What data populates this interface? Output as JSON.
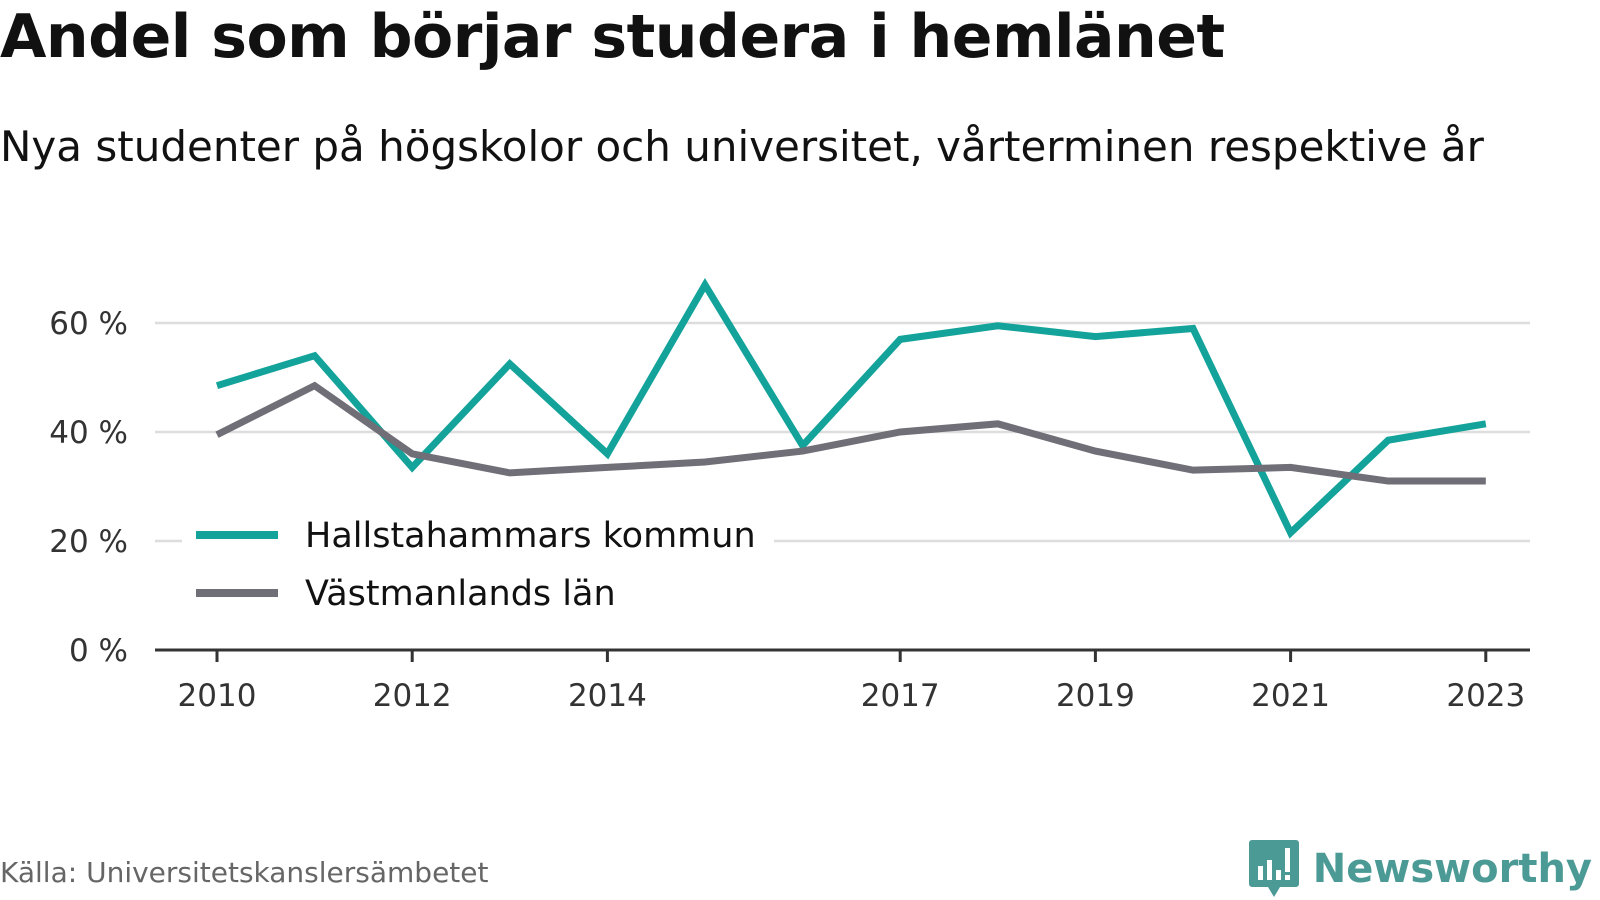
{
  "header": {
    "title": "Andel som börjar studera i hemlänet",
    "subtitle": "Nya studenter på högskolor och universitet, vårterminen respektive år"
  },
  "footer": {
    "source": "Källa: Universitetskanslersämbetet",
    "brand": "Newsworthy"
  },
  "colors": {
    "series1": "#13a39a",
    "series2": "#706e77",
    "grid": "#dddddd",
    "axis": "#333333",
    "brand": "#4c9a96"
  },
  "chart_data": {
    "type": "line",
    "title": "Andel som börjar studera i hemlänet",
    "subtitle": "Nya studenter på högskolor och universitet, vårterminen respektive år",
    "x": [
      2010,
      2011,
      2012,
      2013,
      2014,
      2015,
      2016,
      2017,
      2018,
      2019,
      2020,
      2021,
      2022,
      2023
    ],
    "x_tick_labels": [
      "2010",
      "2012",
      "2014",
      "2017",
      "2019",
      "2021",
      "2023"
    ],
    "y_ticks": [
      0,
      20,
      40,
      60
    ],
    "y_tick_labels": [
      "0 %",
      "20 %",
      "40 %",
      "60 %"
    ],
    "ylim": [
      0,
      70
    ],
    "grid": true,
    "legend_position": "middle-left",
    "series": [
      {
        "name": "Hallstahammars kommun",
        "values": [
          48.5,
          54,
          33.5,
          52.5,
          36,
          67,
          37.5,
          57,
          59.5,
          57.5,
          59,
          21.5,
          38.5,
          41.5
        ]
      },
      {
        "name": "Västmanlands län",
        "values": [
          39.5,
          48.5,
          36,
          32.5,
          33.5,
          34.5,
          36.5,
          40,
          41.5,
          36.5,
          33,
          33.5,
          31,
          31
        ]
      }
    ]
  }
}
